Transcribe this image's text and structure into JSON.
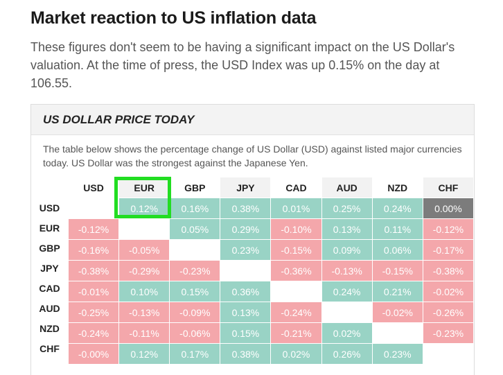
{
  "headline": "Market reaction to US inflation data",
  "intro": "These figures don't seem to be having a significant impact on the US Dollar's valuation. At the time of press, the USD Index was up 0.15% on the day at 106.55.",
  "widget": {
    "title": "US DOLLAR PRICE TODAY",
    "description": "The table below shows the percentage change of US Dollar (USD) against listed major currencies today. US Dollar was the strongest against the Japanese Yen."
  },
  "colors": {
    "positive": "#99d3c5",
    "negative": "#f4a7ab",
    "neutral": "#7c7c7c",
    "highlight": "#22dd22"
  },
  "table": {
    "columns": [
      "USD",
      "EUR",
      "GBP",
      "JPY",
      "CAD",
      "AUD",
      "NZD",
      "CHF"
    ],
    "rows": [
      {
        "label": "USD",
        "cells": [
          "",
          "0.12%",
          "0.16%",
          "0.38%",
          "0.01%",
          "0.25%",
          "0.24%",
          "0.00%"
        ]
      },
      {
        "label": "EUR",
        "cells": [
          "-0.12%",
          "",
          "0.05%",
          "0.29%",
          "-0.10%",
          "0.13%",
          "0.11%",
          "-0.12%"
        ]
      },
      {
        "label": "GBP",
        "cells": [
          "-0.16%",
          "-0.05%",
          "",
          "0.23%",
          "-0.15%",
          "0.09%",
          "0.06%",
          "-0.17%"
        ]
      },
      {
        "label": "JPY",
        "cells": [
          "-0.38%",
          "-0.29%",
          "-0.23%",
          "",
          "-0.36%",
          "-0.13%",
          "-0.15%",
          "-0.38%"
        ]
      },
      {
        "label": "CAD",
        "cells": [
          "-0.01%",
          "0.10%",
          "0.15%",
          "0.36%",
          "",
          "0.24%",
          "0.21%",
          "-0.02%"
        ]
      },
      {
        "label": "AUD",
        "cells": [
          "-0.25%",
          "-0.13%",
          "-0.09%",
          "0.13%",
          "-0.24%",
          "",
          "-0.02%",
          "-0.26%"
        ]
      },
      {
        "label": "NZD",
        "cells": [
          "-0.24%",
          "-0.11%",
          "-0.06%",
          "0.15%",
          "-0.21%",
          "0.02%",
          "",
          "-0.23%"
        ]
      },
      {
        "label": "CHF",
        "cells": [
          "-0.00%",
          "0.12%",
          "0.17%",
          "0.38%",
          "0.02%",
          "0.26%",
          "0.23%",
          ""
        ]
      }
    ],
    "highlighted": {
      "row": "USD",
      "column": "EUR"
    }
  }
}
